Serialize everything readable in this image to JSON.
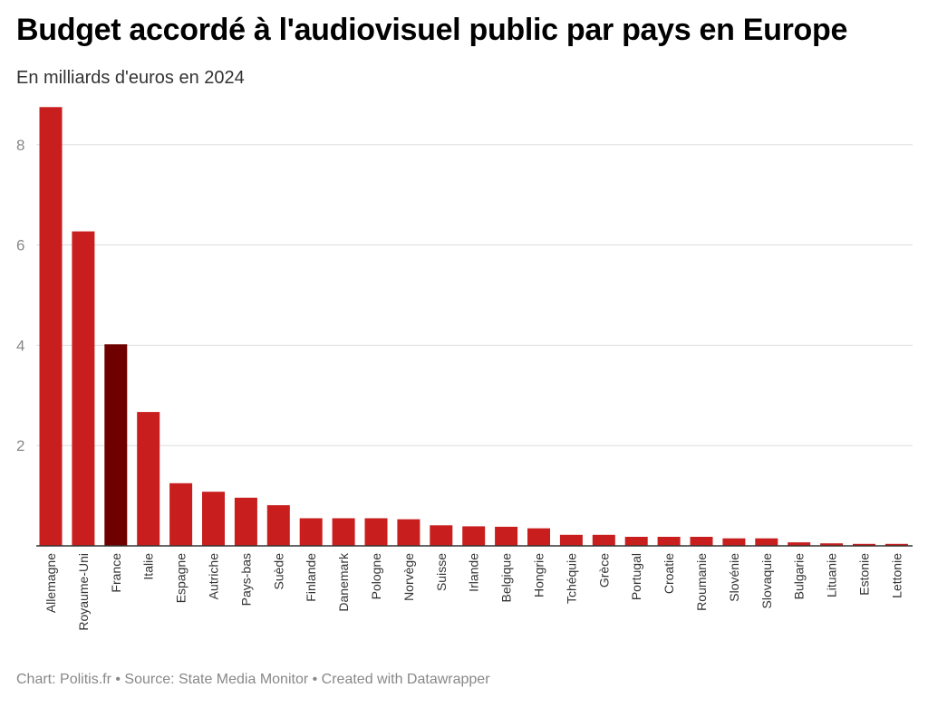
{
  "chart_data": {
    "type": "bar",
    "title": "Budget accordé à l'audiovisuel public par pays en Europe",
    "subtitle": "En milliards d'euros en 2024",
    "categories": [
      "Allemagne",
      "Royaume-Uni",
      "France",
      "Italie",
      "Espagne",
      "Autriche",
      "Pays-bas",
      "Suède",
      "Finlande",
      "Danemark",
      "Pologne",
      "Norvège",
      "Suisse",
      "Irlande",
      "Belgique",
      "Hongrie",
      "Tchéquie",
      "Grèce",
      "Portugal",
      "Croatie",
      "Roumanie",
      "Slovénie",
      "Slovaquie",
      "Bulgarie",
      "Lituanie",
      "Estonie",
      "Lettonie"
    ],
    "values": [
      8.75,
      6.27,
      4.02,
      2.67,
      1.25,
      1.08,
      0.96,
      0.81,
      0.55,
      0.55,
      0.55,
      0.53,
      0.41,
      0.39,
      0.38,
      0.35,
      0.22,
      0.22,
      0.18,
      0.18,
      0.18,
      0.15,
      0.15,
      0.07,
      0.05,
      0.04,
      0.04
    ],
    "highlight": "France",
    "colors": {
      "bar": "#c81e1e",
      "highlight": "#6e0000",
      "grid": "#dddddd",
      "axis": "#333333",
      "tick_text": "#888888"
    },
    "ylim": [
      0,
      8.8
    ],
    "yticks": [
      2,
      4,
      6,
      8
    ],
    "grid": true,
    "xlabel": "",
    "ylabel": ""
  },
  "footer": "Chart: Politis.fr • Source: State Media Monitor • Created with Datawrapper"
}
